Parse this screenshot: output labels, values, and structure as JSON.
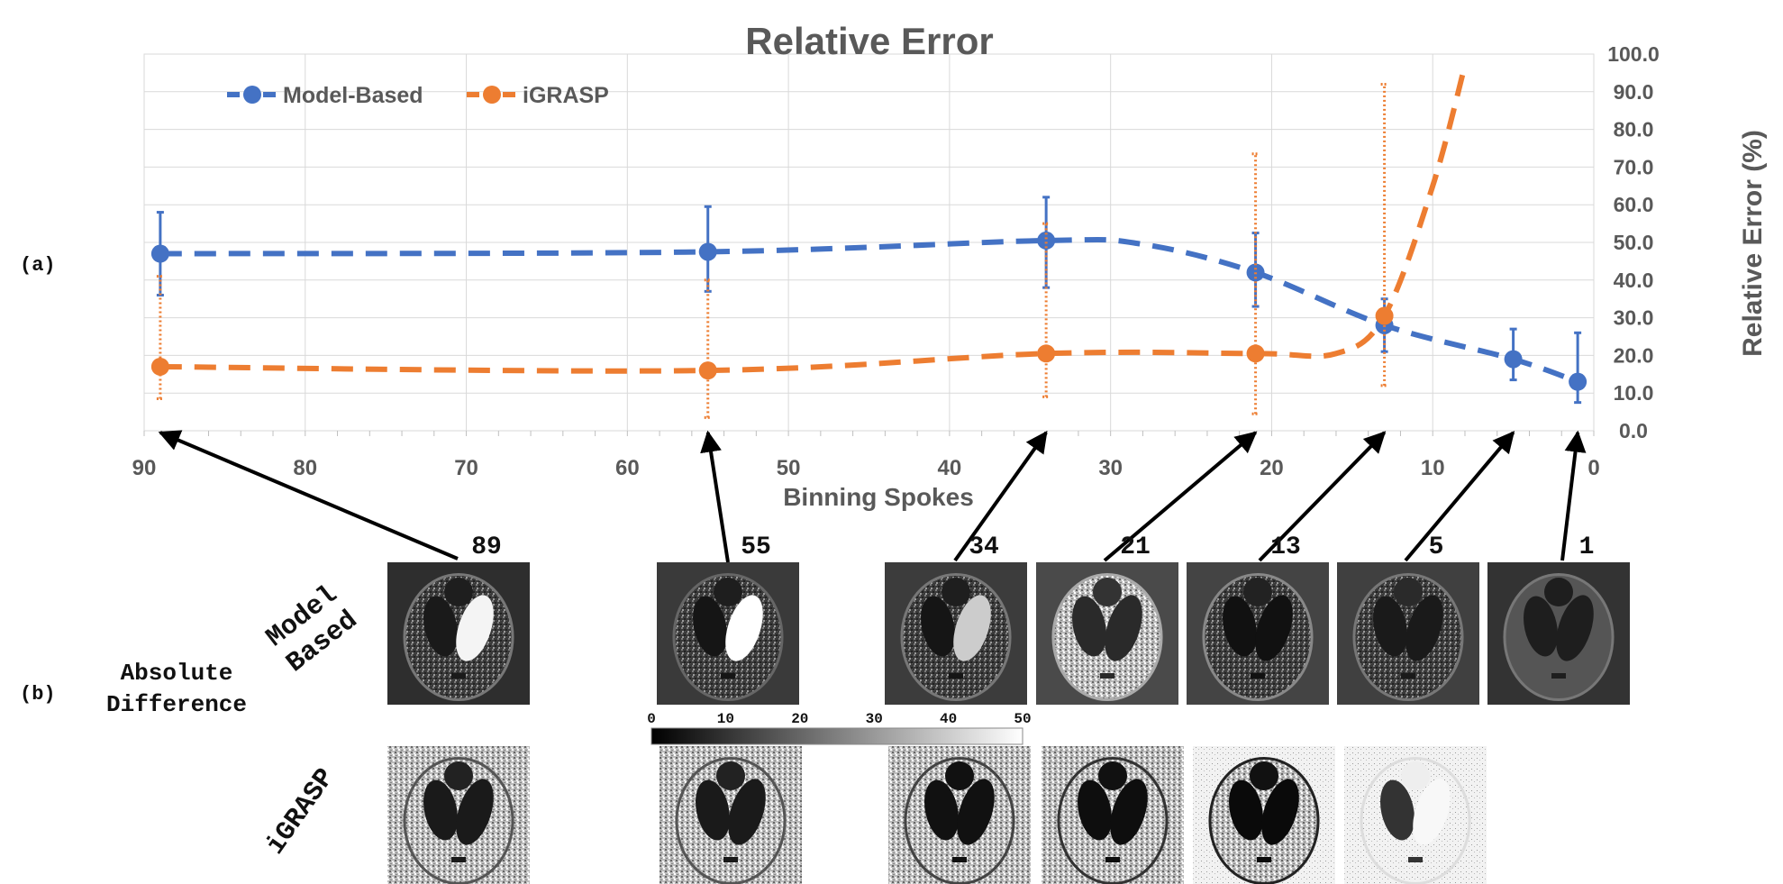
{
  "chart_data": {
    "type": "line",
    "title": "Relative Error",
    "xlabel": "Binning Spokes",
    "ylabel": "Relative Error (%)",
    "xlim": [
      90,
      0
    ],
    "ylim": [
      0,
      100
    ],
    "x_ticks": [
      "90",
      "80",
      "70",
      "60",
      "50",
      "40",
      "30",
      "20",
      "10",
      "0"
    ],
    "y_ticks": [
      "0.0",
      "10.0",
      "20.0",
      "30.0",
      "40.0",
      "50.0",
      "60.0",
      "70.0",
      "80.0",
      "90.0",
      "100.0"
    ],
    "legend": {
      "position": "top-left"
    },
    "series": [
      {
        "name": "Model-Based",
        "color": "#4472C4",
        "x": [
          89,
          55,
          34,
          21,
          13,
          5,
          1
        ],
        "values": [
          47,
          47.5,
          50.5,
          42,
          28,
          19,
          13
        ],
        "err_low": [
          36,
          37,
          38,
          33,
          21,
          13.5,
          7.5
        ],
        "err_high": [
          58,
          59.5,
          62,
          52.5,
          35,
          27,
          26
        ],
        "curve_x": [
          89,
          55,
          34,
          28,
          21,
          13,
          5,
          1
        ],
        "curve_y": [
          47,
          47.5,
          50.5,
          49.5,
          42,
          28,
          19,
          13
        ]
      },
      {
        "name": "iGRASP",
        "color": "#ED7D31",
        "x": [
          89,
          55,
          34,
          21,
          13
        ],
        "values": [
          17,
          16,
          20.5,
          20.5,
          30.5
        ],
        "err_low": [
          8.5,
          3.5,
          9,
          4.5,
          12
        ],
        "err_high": [
          41,
          40,
          55,
          73.5,
          92
        ],
        "curve_x": [
          89,
          55,
          34,
          21,
          16,
          13,
          10,
          8
        ],
        "curve_y": [
          17,
          16,
          20.5,
          20.5,
          20.5,
          30.5,
          65,
          97
        ]
      }
    ]
  },
  "labels": {
    "panel_a": "(a)",
    "panel_b": "(b)",
    "model_based_line1": "Model",
    "model_based_line2": "Based",
    "abs_diff_line1": "Absolute",
    "abs_diff_line2": "Difference",
    "igrasp_row": "iGRASP"
  },
  "thumbnails": {
    "spoke_labels": [
      "89",
      "55",
      "34",
      "21",
      "13",
      "5",
      "1"
    ],
    "model_based": [
      "mb-89",
      "mb-55",
      "mb-34",
      "mb-21",
      "mb-13",
      "mb-5",
      "mb-1"
    ],
    "igrasp": [
      "ig-89",
      "ig-55",
      "ig-34",
      "ig-21",
      "ig-13",
      "ig-5"
    ]
  },
  "colorbar": {
    "ticks": [
      "0",
      "10",
      "20",
      "30",
      "40",
      "50"
    ]
  }
}
